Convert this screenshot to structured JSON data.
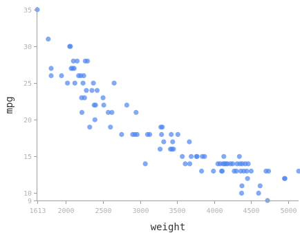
{
  "chart_data": {
    "type": "scatter",
    "xlabel": "weight",
    "ylabel": "mpg",
    "xlim": [
      1613,
      5140
    ],
    "ylim": [
      9,
      35
    ],
    "x_ticks": [
      1613,
      2000,
      2500,
      3000,
      3500,
      4000,
      4500,
      5000
    ],
    "y_ticks": [
      9,
      10,
      15,
      20,
      25,
      30,
      35
    ],
    "grid": false,
    "legend": "none",
    "point_color": "#4c84f0",
    "points": [
      {
        "x": 1613,
        "y": 35
      },
      {
        "x": 1760,
        "y": 31
      },
      {
        "x": 1800,
        "y": 27
      },
      {
        "x": 1800,
        "y": 26
      },
      {
        "x": 1940,
        "y": 26
      },
      {
        "x": 2020,
        "y": 25
      },
      {
        "x": 2050,
        "y": 30
      },
      {
        "x": 2060,
        "y": 30
      },
      {
        "x": 2070,
        "y": 27
      },
      {
        "x": 2090,
        "y": 27
      },
      {
        "x": 2100,
        "y": 28
      },
      {
        "x": 2110,
        "y": 27
      },
      {
        "x": 2120,
        "y": 25
      },
      {
        "x": 2150,
        "y": 28
      },
      {
        "x": 2170,
        "y": 26
      },
      {
        "x": 2200,
        "y": 26
      },
      {
        "x": 2210,
        "y": 23
      },
      {
        "x": 2215,
        "y": 21
      },
      {
        "x": 2230,
        "y": 25
      },
      {
        "x": 2240,
        "y": 26
      },
      {
        "x": 2250,
        "y": 23
      },
      {
        "x": 2260,
        "y": 28
      },
      {
        "x": 2275,
        "y": 24
      },
      {
        "x": 2290,
        "y": 28
      },
      {
        "x": 2320,
        "y": 19
      },
      {
        "x": 2350,
        "y": 24
      },
      {
        "x": 2370,
        "y": 25
      },
      {
        "x": 2380,
        "y": 22
      },
      {
        "x": 2390,
        "y": 20
      },
      {
        "x": 2400,
        "y": 22
      },
      {
        "x": 2420,
        "y": 24
      },
      {
        "x": 2500,
        "y": 23
      },
      {
        "x": 2510,
        "y": 22
      },
      {
        "x": 2570,
        "y": 21
      },
      {
        "x": 2600,
        "y": 19
      },
      {
        "x": 2620,
        "y": 21
      },
      {
        "x": 2650,
        "y": 25
      },
      {
        "x": 2750,
        "y": 18
      },
      {
        "x": 2820,
        "y": 22
      },
      {
        "x": 2900,
        "y": 18
      },
      {
        "x": 2930,
        "y": 18
      },
      {
        "x": 2945,
        "y": 21
      },
      {
        "x": 2960,
        "y": 18
      },
      {
        "x": 3070,
        "y": 14
      },
      {
        "x": 3100,
        "y": 18
      },
      {
        "x": 3130,
        "y": 18
      },
      {
        "x": 3270,
        "y": 16
      },
      {
        "x": 3280,
        "y": 19
      },
      {
        "x": 3290,
        "y": 18
      },
      {
        "x": 3300,
        "y": 19
      },
      {
        "x": 3320,
        "y": 17
      },
      {
        "x": 3410,
        "y": 16
      },
      {
        "x": 3420,
        "y": 18
      },
      {
        "x": 3430,
        "y": 16
      },
      {
        "x": 3440,
        "y": 17
      },
      {
        "x": 3450,
        "y": 16
      },
      {
        "x": 3510,
        "y": 18
      },
      {
        "x": 3570,
        "y": 15
      },
      {
        "x": 3610,
        "y": 14
      },
      {
        "x": 3665,
        "y": 17
      },
      {
        "x": 3670,
        "y": 14
      },
      {
        "x": 3690,
        "y": 15
      },
      {
        "x": 3760,
        "y": 15
      },
      {
        "x": 3770,
        "y": 15
      },
      {
        "x": 3830,
        "y": 13
      },
      {
        "x": 3840,
        "y": 15
      },
      {
        "x": 3870,
        "y": 15
      },
      {
        "x": 3990,
        "y": 13
      },
      {
        "x": 4050,
        "y": 14
      },
      {
        "x": 4080,
        "y": 14
      },
      {
        "x": 4100,
        "y": 13
      },
      {
        "x": 4110,
        "y": 13
      },
      {
        "x": 4120,
        "y": 14
      },
      {
        "x": 4130,
        "y": 15
      },
      {
        "x": 4140,
        "y": 14
      },
      {
        "x": 4160,
        "y": 14
      },
      {
        "x": 4180,
        "y": 14
      },
      {
        "x": 4220,
        "y": 14
      },
      {
        "x": 4250,
        "y": 14
      },
      {
        "x": 4270,
        "y": 13
      },
      {
        "x": 4300,
        "y": 13
      },
      {
        "x": 4310,
        "y": 14
      },
      {
        "x": 4340,
        "y": 15
      },
      {
        "x": 4350,
        "y": 14
      },
      {
        "x": 4360,
        "y": 13
      },
      {
        "x": 4370,
        "y": 10
      },
      {
        "x": 4375,
        "y": 11
      },
      {
        "x": 4380,
        "y": 14
      },
      {
        "x": 4400,
        "y": 13
      },
      {
        "x": 4420,
        "y": 14
      },
      {
        "x": 4440,
        "y": 13
      },
      {
        "x": 4450,
        "y": 12
      },
      {
        "x": 4460,
        "y": 14
      },
      {
        "x": 4500,
        "y": 13
      },
      {
        "x": 4600,
        "y": 10
      },
      {
        "x": 4620,
        "y": 11
      },
      {
        "x": 4700,
        "y": 13
      },
      {
        "x": 4720,
        "y": 9
      },
      {
        "x": 4735,
        "y": 13
      },
      {
        "x": 4950,
        "y": 12
      },
      {
        "x": 4955,
        "y": 12
      },
      {
        "x": 5140,
        "y": 13
      }
    ]
  }
}
